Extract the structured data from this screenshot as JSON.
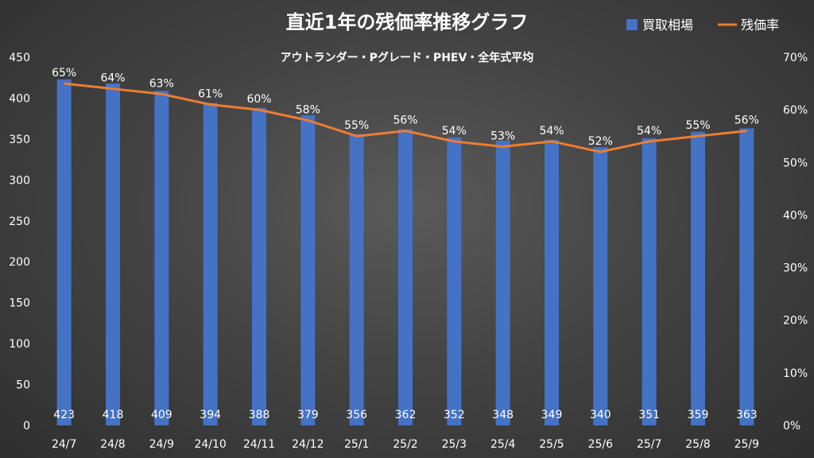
{
  "chart_data": {
    "type": "bar+line",
    "title": "直近1年の残価率推移グラフ",
    "subtitle": "アウトランダー・Pグレード・PHEV・全年式平均",
    "categories": [
      "24/7",
      "24/8",
      "24/9",
      "24/10",
      "24/11",
      "24/12",
      "25/1",
      "25/2",
      "25/3",
      "25/4",
      "25/5",
      "25/6",
      "25/7",
      "25/8",
      "25/9"
    ],
    "series": [
      {
        "name": "買取相場",
        "type": "bar",
        "axis": "left",
        "color": "#4472C4",
        "values": [
          423,
          418,
          409,
          394,
          388,
          379,
          356,
          362,
          352,
          348,
          349,
          340,
          351,
          359,
          363
        ]
      },
      {
        "name": "残価率",
        "type": "line",
        "axis": "right",
        "color": "#ED7D31",
        "values": [
          65,
          64,
          63,
          61,
          60,
          58,
          55,
          56,
          54,
          53,
          54,
          52,
          54,
          55,
          56
        ],
        "labels": [
          "65%",
          "64%",
          "63%",
          "61%",
          "60%",
          "58%",
          "55%",
          "56%",
          "54%",
          "53%",
          "54%",
          "52%",
          "54%",
          "55%",
          "56%"
        ]
      }
    ],
    "y_left": {
      "min": 0,
      "max": 450,
      "step": 50,
      "ticks": [
        "0",
        "50",
        "100",
        "150",
        "200",
        "250",
        "300",
        "350",
        "400",
        "450"
      ]
    },
    "y_right": {
      "min": 0,
      "max": 70,
      "step": 10,
      "ticks": [
        "0%",
        "10%",
        "20%",
        "30%",
        "40%",
        "50%",
        "60%",
        "70%"
      ]
    },
    "legend_position": "top-right",
    "grid": false
  }
}
